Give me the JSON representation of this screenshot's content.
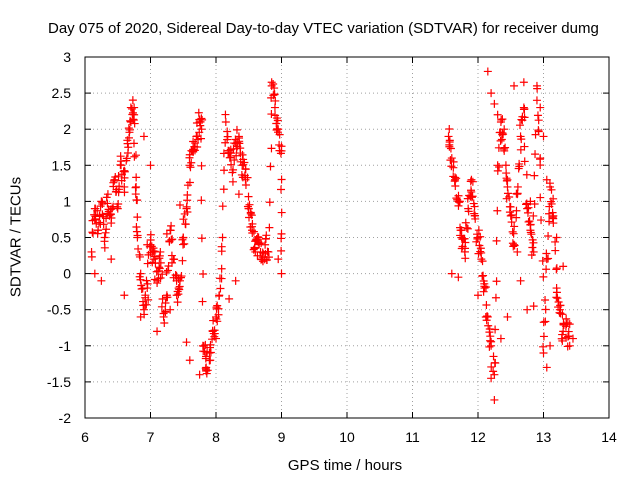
{
  "chart_data": {
    "type": "scatter",
    "title": "Day 075 of 2020, Sidereal Day-to-day VTEC variation (SDTVAR) for receiver dumg",
    "xlabel": "GPS time / hours",
    "ylabel": "SDTVAR / TECUs",
    "xlim": [
      6,
      14
    ],
    "ylim": [
      -2,
      3
    ],
    "xticks": [
      "6",
      "7",
      "8",
      "9",
      "10",
      "11",
      "12",
      "13",
      "14"
    ],
    "yticks": [
      "-2",
      "-1.5",
      "-1",
      "-0.5",
      "0",
      "0.5",
      "1",
      "1.5",
      "2",
      "2.5",
      "3"
    ],
    "grid": true,
    "marker": "+",
    "color": "#ff0000",
    "series": [
      {
        "name": "SDTVAR",
        "trace": [
          [
            6.1,
            0.3
          ],
          [
            6.15,
            0.9
          ],
          [
            6.2,
            0.6
          ],
          [
            6.25,
            1.0
          ],
          [
            6.3,
            0.5
          ],
          [
            6.35,
            1.1
          ],
          [
            6.4,
            0.7
          ],
          [
            6.45,
            1.3
          ],
          [
            6.5,
            0.9
          ],
          [
            6.55,
            1.5
          ],
          [
            6.6,
            1.2
          ],
          [
            6.65,
            1.8
          ],
          [
            6.7,
            2.1
          ],
          [
            6.75,
            2.3
          ],
          [
            6.78,
            1.2
          ],
          [
            6.8,
            0.5
          ],
          [
            6.85,
            0.0
          ],
          [
            6.9,
            -0.5
          ],
          [
            6.95,
            -0.2
          ],
          [
            7.0,
            0.4
          ],
          [
            7.05,
            0.2
          ],
          [
            7.1,
            -0.1
          ],
          [
            7.15,
            0.3
          ],
          [
            7.2,
            -0.6
          ],
          [
            7.25,
            -0.3
          ],
          [
            7.3,
            0.6
          ],
          [
            7.35,
            0.2
          ],
          [
            7.4,
            -0.3
          ],
          [
            7.45,
            -0.1
          ],
          [
            7.5,
            0.5
          ],
          [
            7.55,
            0.9
          ],
          [
            7.6,
            1.5
          ],
          [
            7.65,
            1.7
          ],
          [
            7.7,
            1.9
          ],
          [
            7.75,
            2.1
          ],
          [
            7.78,
            2.0
          ],
          [
            7.8,
            -1.0
          ],
          [
            7.85,
            -1.3
          ],
          [
            7.9,
            -1.1
          ],
          [
            7.95,
            -0.8
          ],
          [
            8.0,
            -0.6
          ],
          [
            8.05,
            -0.3
          ],
          [
            8.1,
            0.5
          ],
          [
            8.15,
            2.1
          ],
          [
            8.2,
            1.7
          ],
          [
            8.25,
            1.4
          ],
          [
            8.3,
            1.8
          ],
          [
            8.35,
            1.9
          ],
          [
            8.4,
            1.5
          ],
          [
            8.45,
            1.3
          ],
          [
            8.5,
            0.9
          ],
          [
            8.55,
            0.6
          ],
          [
            8.6,
            0.3
          ],
          [
            8.65,
            0.5
          ],
          [
            8.7,
            0.2
          ],
          [
            8.75,
            0.4
          ],
          [
            8.8,
            0.3
          ],
          [
            8.85,
            2.6
          ],
          [
            8.9,
            2.3
          ],
          [
            8.95,
            2.0
          ],
          [
            9.0,
            1.7
          ],
          [
            9.0,
            0.0
          ],
          [
            11.55,
            1.9
          ],
          [
            11.6,
            1.6
          ],
          [
            11.65,
            1.3
          ],
          [
            11.7,
            1.0
          ],
          [
            11.75,
            0.6
          ],
          [
            11.8,
            0.3
          ],
          [
            11.85,
            0.9
          ],
          [
            11.9,
            1.3
          ],
          [
            11.95,
            0.8
          ],
          [
            12.0,
            0.5
          ],
          [
            12.05,
            0.2
          ],
          [
            12.1,
            -0.2
          ],
          [
            12.15,
            -0.6
          ],
          [
            12.2,
            -1.0
          ],
          [
            12.25,
            -1.4
          ],
          [
            12.3,
            1.5
          ],
          [
            12.35,
            2.1
          ],
          [
            12.4,
            1.7
          ],
          [
            12.45,
            1.2
          ],
          [
            12.5,
            0.8
          ],
          [
            12.55,
            0.4
          ],
          [
            12.6,
            1.1
          ],
          [
            12.65,
            1.9
          ],
          [
            12.7,
            2.3
          ],
          [
            12.75,
            0.9
          ],
          [
            12.8,
            0.6
          ],
          [
            12.85,
            0.3
          ],
          [
            12.9,
            2.4
          ],
          [
            12.95,
            1.6
          ],
          [
            13.0,
            -1.1
          ],
          [
            13.05,
            0.2
          ],
          [
            13.1,
            1.2
          ],
          [
            13.15,
            0.8
          ],
          [
            13.2,
            -0.2
          ],
          [
            13.25,
            -0.5
          ],
          [
            13.3,
            -0.8
          ],
          [
            13.35,
            -0.7
          ],
          [
            13.4,
            -1.0
          ]
        ],
        "scatter": [
          [
            6.7,
            2.3
          ],
          [
            6.75,
            2.2
          ],
          [
            6.9,
            1.9
          ],
          [
            7.0,
            1.5
          ],
          [
            8.85,
            2.65
          ],
          [
            12.15,
            2.8
          ],
          [
            12.2,
            2.5
          ],
          [
            12.25,
            2.35
          ],
          [
            12.3,
            2.2
          ],
          [
            12.4,
            2.0
          ],
          [
            12.55,
            2.6
          ],
          [
            12.7,
            2.65
          ],
          [
            12.8,
            1.0
          ],
          [
            12.9,
            2.6
          ],
          [
            12.95,
            2.3
          ],
          [
            13.0,
            1.9
          ],
          [
            13.05,
            1.3
          ],
          [
            13.15,
            0.7
          ],
          [
            13.2,
            0.5
          ],
          [
            13.3,
            0.1
          ],
          [
            12.25,
            -1.75
          ],
          [
            12.2,
            -1.45
          ],
          [
            12.35,
            -0.9
          ],
          [
            12.45,
            -0.6
          ],
          [
            12.6,
            0.3
          ],
          [
            12.65,
            -0.1
          ],
          [
            12.75,
            -0.5
          ],
          [
            12.85,
            -0.45
          ],
          [
            13.05,
            -1.3
          ],
          [
            13.1,
            -1.0
          ],
          [
            13.4,
            -0.7
          ],
          [
            13.45,
            -0.9
          ],
          [
            11.6,
            0.0
          ],
          [
            11.7,
            -0.05
          ],
          [
            11.8,
            0.3
          ],
          [
            12.0,
            -0.3
          ],
          [
            7.75,
            -1.4
          ],
          [
            7.85,
            -1.35
          ],
          [
            7.6,
            -1.2
          ],
          [
            7.55,
            -0.95
          ],
          [
            8.0,
            -0.9
          ],
          [
            8.35,
            1.1
          ],
          [
            8.45,
            1.45
          ],
          [
            8.55,
            0.65
          ],
          [
            8.3,
            -0.1
          ],
          [
            8.2,
            -0.35
          ],
          [
            8.95,
            0.2
          ],
          [
            9.0,
            0.55
          ],
          [
            6.25,
            -0.1
          ],
          [
            6.15,
            0.0
          ],
          [
            6.4,
            0.2
          ],
          [
            6.6,
            -0.3
          ],
          [
            6.85,
            -0.6
          ],
          [
            7.1,
            -0.8
          ],
          [
            7.3,
            -0.5
          ],
          [
            7.45,
            0.95
          ],
          [
            7.25,
            0.55
          ],
          [
            6.95,
            0.4
          ]
        ]
      }
    ]
  }
}
